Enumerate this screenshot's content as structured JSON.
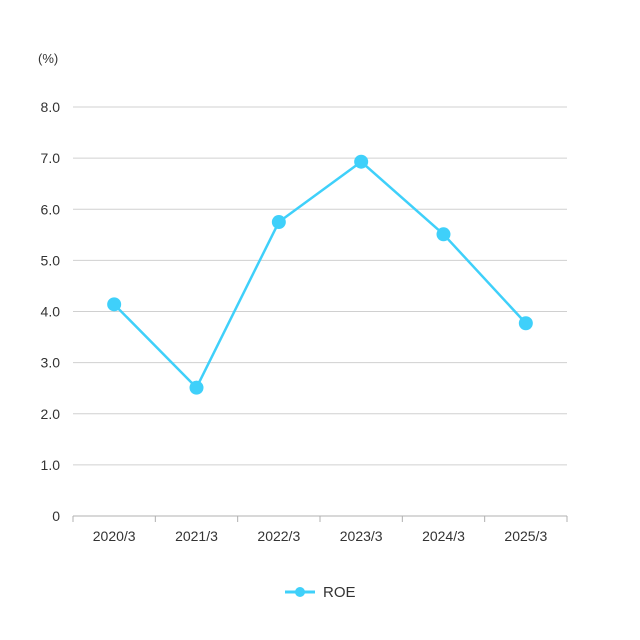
{
  "chart_data": {
    "type": "line",
    "unit_label": "(%)",
    "categories": [
      "2020/3",
      "2021/3",
      "2022/3",
      "2023/3",
      "2024/3",
      "2025/3"
    ],
    "series": [
      {
        "name": "ROE",
        "values": [
          4.14,
          2.51,
          5.75,
          6.93,
          5.51,
          3.77
        ],
        "color": "#3fd0fa"
      }
    ],
    "ylim": [
      0,
      8
    ],
    "y_ticks": [
      {
        "value": 0,
        "label": "0"
      },
      {
        "value": 1,
        "label": "1.0"
      },
      {
        "value": 2,
        "label": "2.0"
      },
      {
        "value": 3,
        "label": "3.0"
      },
      {
        "value": 4,
        "label": "4.0"
      },
      {
        "value": 5,
        "label": "5.0"
      },
      {
        "value": 6,
        "label": "6.0"
      },
      {
        "value": 7,
        "label": "7.0"
      },
      {
        "value": 8,
        "label": "8.0"
      }
    ],
    "grid": true,
    "legend_position": "bottom-center",
    "gridline_color": "#d0d0d0",
    "axis_color": "#b0b0b0"
  }
}
